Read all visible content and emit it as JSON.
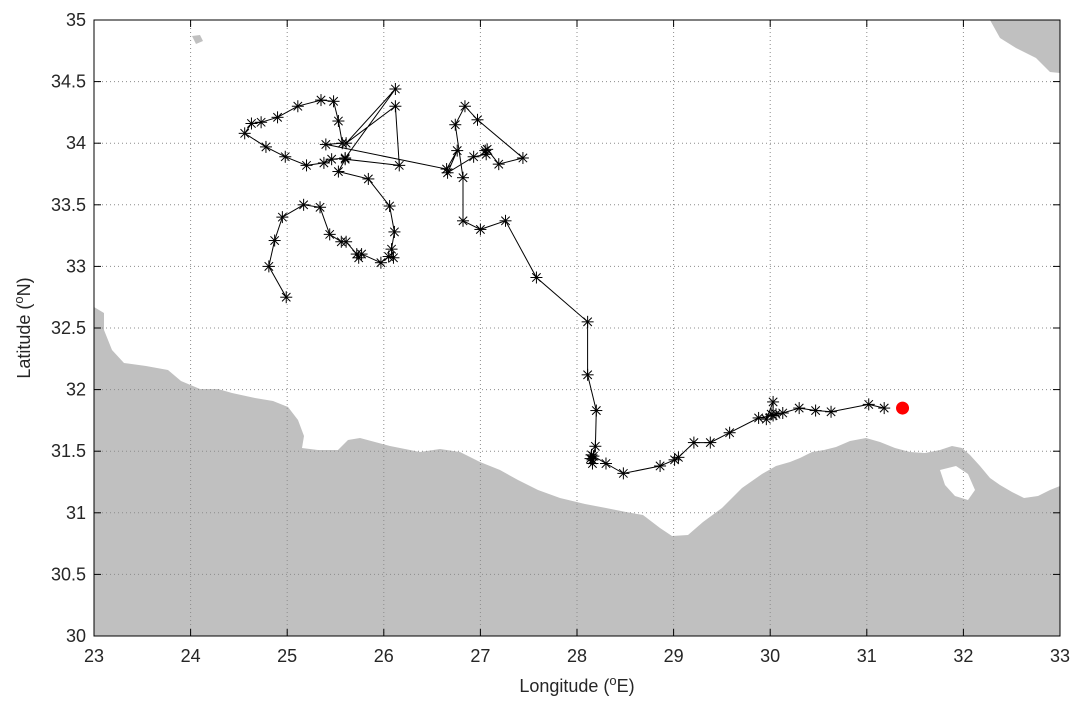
{
  "colors": {
    "land": "#c0c0c0",
    "sea": "#ffffff",
    "track": "#000000",
    "grid": "#8c8c8c",
    "end_marker": "#ff0000"
  },
  "axes": {
    "xlabel": "Longitude (°E)",
    "ylabel": "Latitude (°N)",
    "xlim": [
      23,
      33
    ],
    "ylim": [
      30,
      35
    ],
    "xticks": [
      "23",
      "24",
      "25",
      "26",
      "27",
      "28",
      "29",
      "30",
      "31",
      "32",
      "33"
    ],
    "yticks": [
      "30",
      "30.5",
      "31",
      "31.5",
      "32",
      "32.5",
      "33",
      "33.5",
      "34",
      "34.5",
      "35"
    ],
    "grid": true,
    "grid_style": "dotted"
  },
  "chart_data": {
    "type": "scatter",
    "title": "",
    "xlabel": "Longitude (°E)",
    "ylabel": "Latitude (°N)",
    "xlim": [
      23,
      33
    ],
    "ylim": [
      30,
      35
    ],
    "grid": true,
    "series": [
      {
        "marker": "asterisk",
        "line": "solid",
        "color": "#000000",
        "points": [
          [
            24.99,
            32.75
          ],
          [
            24.81,
            33.0
          ],
          [
            24.87,
            33.21
          ],
          [
            24.95,
            33.4
          ],
          [
            25.17,
            33.5
          ],
          [
            25.34,
            33.48
          ],
          [
            25.44,
            33.26
          ],
          [
            25.56,
            33.2
          ],
          [
            25.61,
            33.2
          ],
          [
            25.72,
            33.1
          ],
          [
            25.74,
            33.07
          ],
          [
            25.77,
            33.1
          ],
          [
            25.97,
            33.03
          ],
          [
            26.05,
            33.08
          ],
          [
            26.1,
            33.07
          ],
          [
            26.08,
            33.14
          ],
          [
            26.11,
            33.28
          ],
          [
            26.06,
            33.49
          ],
          [
            25.84,
            33.71
          ],
          [
            25.53,
            33.77
          ],
          [
            25.6,
            33.87
          ],
          [
            26.16,
            33.82
          ],
          [
            26.12,
            34.3
          ],
          [
            25.61,
            34.0
          ],
          [
            26.12,
            34.44
          ],
          [
            25.6,
            33.88
          ],
          [
            25.46,
            33.87
          ],
          [
            25.38,
            33.84
          ],
          [
            25.2,
            33.82
          ],
          [
            24.98,
            33.89
          ],
          [
            24.78,
            33.97
          ],
          [
            24.56,
            34.08
          ],
          [
            24.63,
            34.16
          ],
          [
            24.73,
            34.17
          ],
          [
            24.9,
            34.21
          ],
          [
            25.11,
            34.3
          ],
          [
            25.35,
            34.35
          ],
          [
            25.48,
            34.34
          ],
          [
            25.53,
            34.18
          ],
          [
            25.57,
            34.0
          ],
          [
            25.4,
            33.99
          ],
          [
            26.65,
            33.79
          ],
          [
            26.76,
            33.94
          ],
          [
            26.66,
            33.76
          ],
          [
            26.93,
            33.89
          ],
          [
            27.06,
            33.91
          ],
          [
            27.05,
            33.94
          ],
          [
            27.07,
            33.95
          ],
          [
            27.19,
            33.83
          ],
          [
            27.44,
            33.88
          ],
          [
            26.97,
            34.19
          ],
          [
            26.84,
            34.3
          ],
          [
            26.74,
            34.15
          ],
          [
            26.82,
            33.72
          ],
          [
            26.82,
            33.37
          ],
          [
            27.0,
            33.3
          ],
          [
            27.26,
            33.37
          ],
          [
            27.58,
            32.91
          ],
          [
            28.11,
            32.55
          ],
          [
            28.11,
            32.12
          ],
          [
            28.2,
            31.83
          ],
          [
            28.19,
            31.54
          ],
          [
            28.17,
            31.46
          ],
          [
            28.14,
            31.44
          ],
          [
            28.16,
            31.4
          ],
          [
            28.16,
            31.43
          ],
          [
            28.15,
            31.47
          ],
          [
            28.3,
            31.4
          ],
          [
            28.48,
            31.32
          ],
          [
            28.86,
            31.38
          ],
          [
            29.01,
            31.43
          ],
          [
            29.05,
            31.45
          ],
          [
            29.21,
            31.57
          ],
          [
            29.38,
            31.57
          ],
          [
            29.58,
            31.65
          ],
          [
            29.88,
            31.77
          ],
          [
            30.03,
            31.79
          ],
          [
            30.03,
            31.9
          ],
          [
            29.96,
            31.76
          ],
          [
            30.01,
            31.8
          ],
          [
            30.06,
            31.8
          ],
          [
            30.13,
            31.81
          ],
          [
            30.3,
            31.85
          ],
          [
            30.47,
            31.83
          ],
          [
            30.63,
            31.82
          ],
          [
            31.02,
            31.88
          ],
          [
            31.18,
            31.85
          ]
        ]
      }
    ],
    "end_point": [
      31.37,
      31.85
    ]
  }
}
